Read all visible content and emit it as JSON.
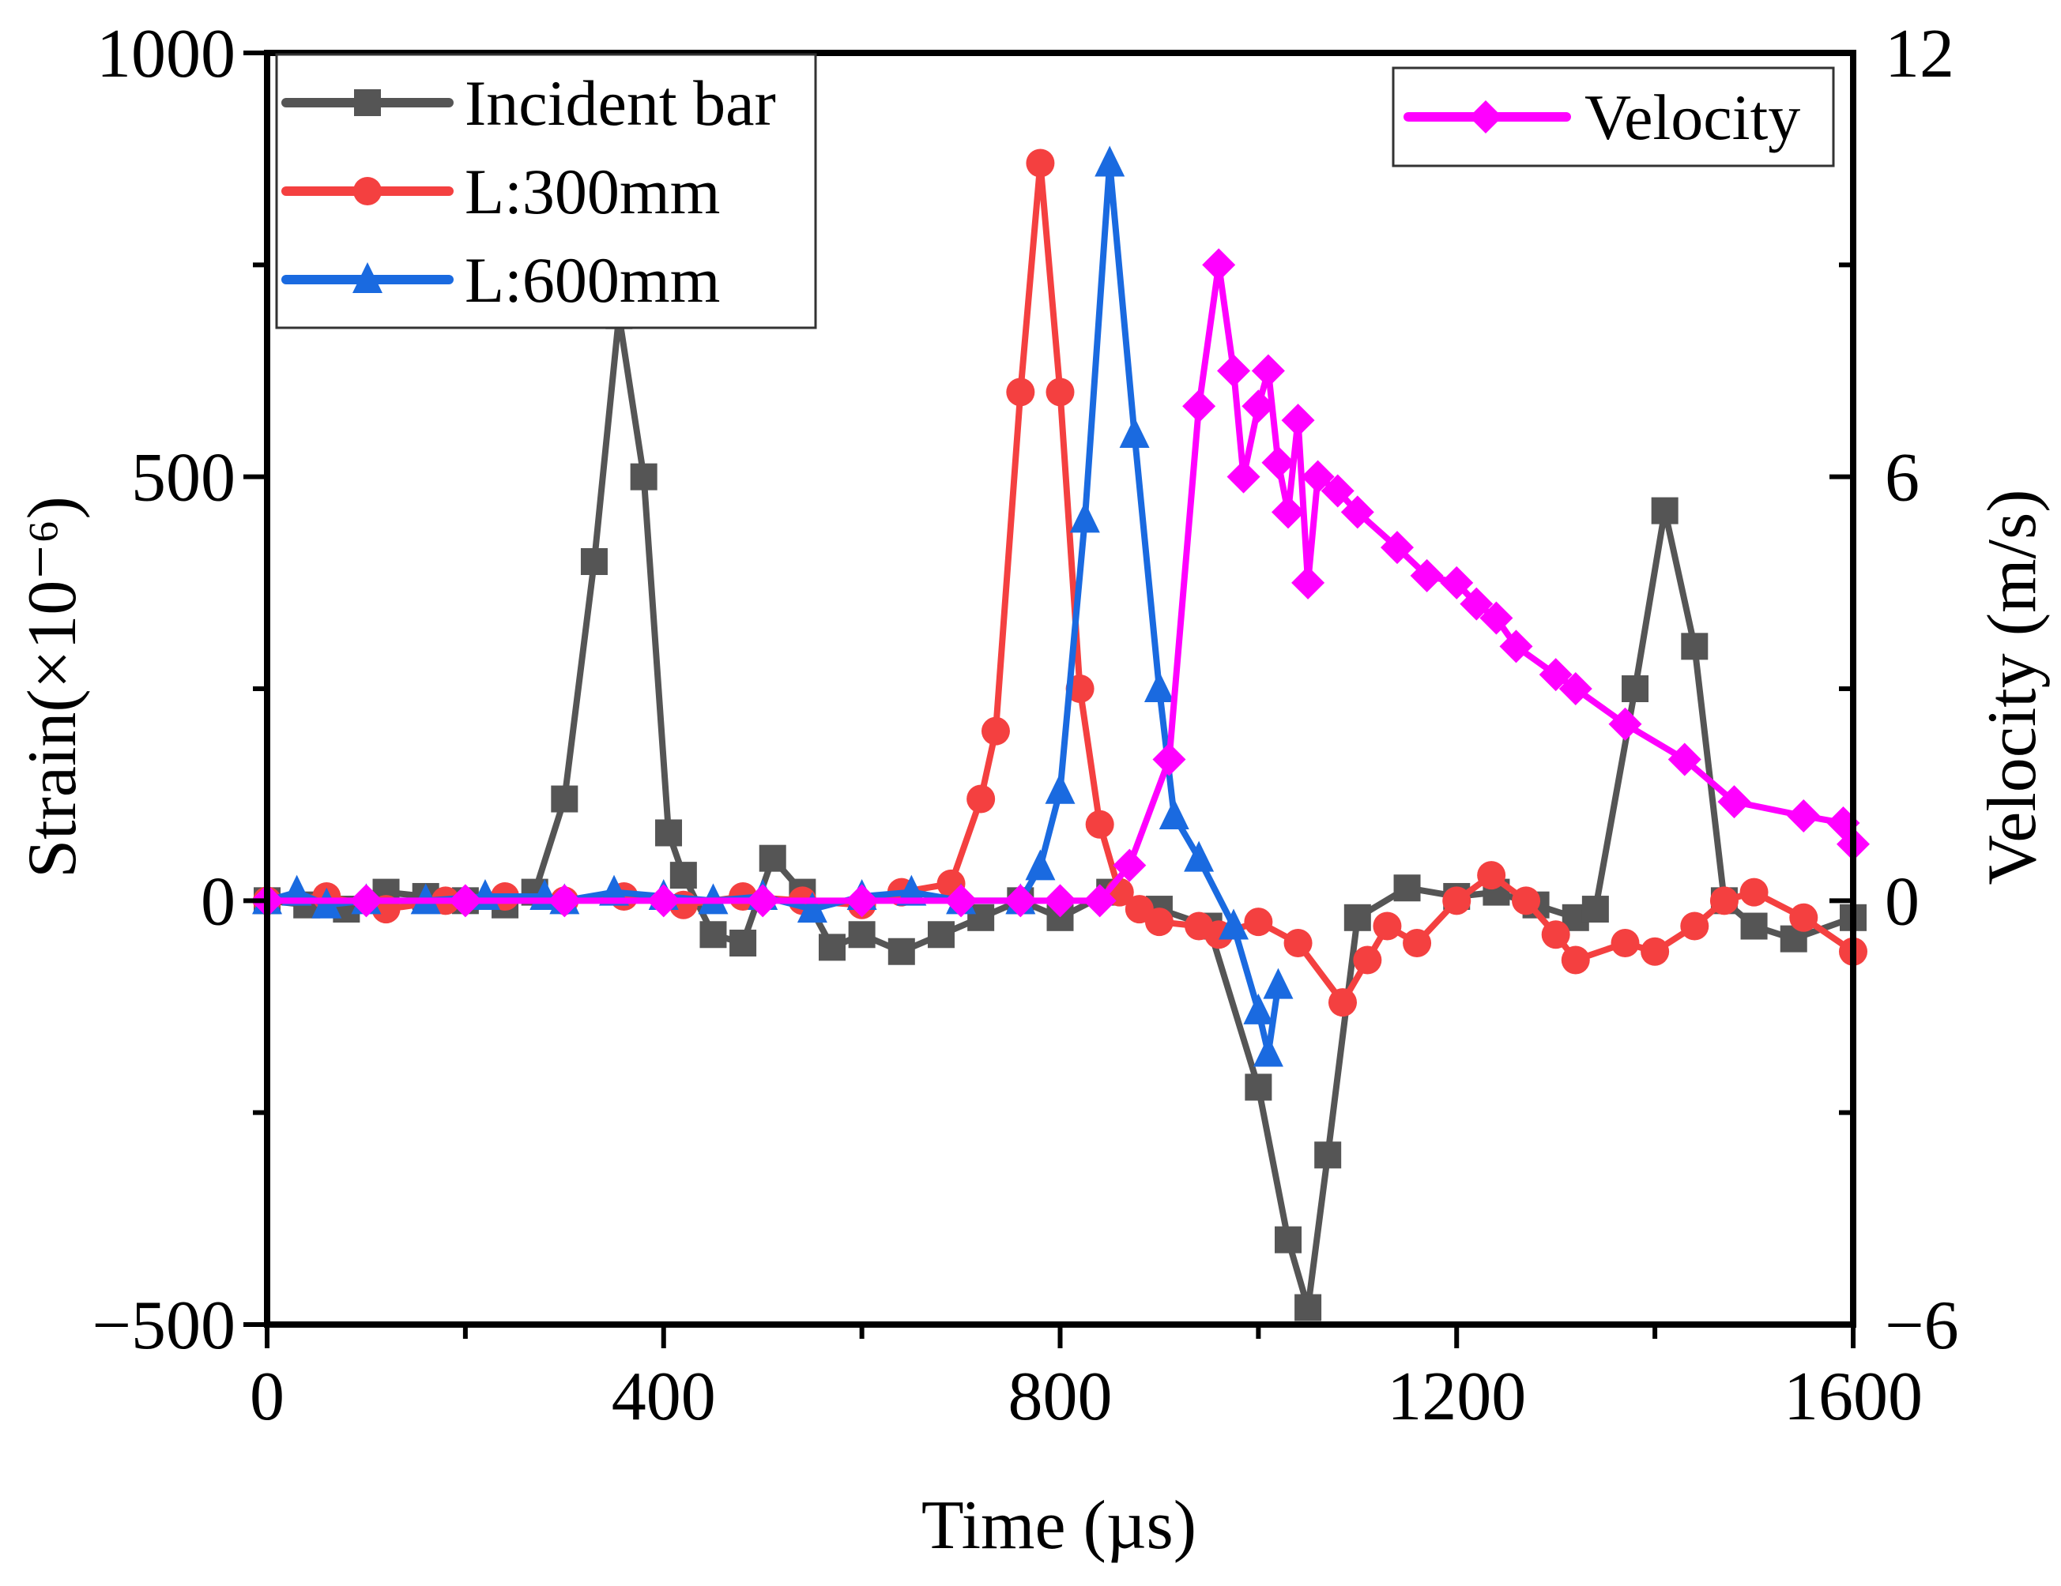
{
  "chart_data": {
    "type": "line",
    "xlabel": "Time (µs)",
    "ylabel": "Strain(×10⁻⁶)",
    "y2label": "Velocity (m/s)",
    "xlim": [
      0,
      1600
    ],
    "ylim": [
      -500,
      1000
    ],
    "y2lim": [
      -6,
      12
    ],
    "xticks": [
      "0",
      "400",
      "800",
      "1200",
      "1600"
    ],
    "yticks": [
      "1000",
      "500",
      "0",
      "−500"
    ],
    "y2ticks": [
      "12",
      "6",
      "0",
      "−6"
    ],
    "grid": false,
    "legend_left": "top-left",
    "legend_right": "top-right",
    "series": [
      {
        "name": "Incident bar",
        "axis": "left",
        "color": "#555555",
        "marker": "square",
        "x": [
          0,
          40,
          80,
          120,
          160,
          200,
          240,
          270,
          300,
          330,
          355,
          380,
          405,
          420,
          450,
          480,
          510,
          540,
          570,
          600,
          640,
          680,
          720,
          760,
          800,
          850,
          900,
          950,
          1000,
          1030,
          1050,
          1070,
          1100,
          1150,
          1200,
          1240,
          1280,
          1320,
          1340,
          1380,
          1410,
          1440,
          1470,
          1500,
          1540,
          1600
        ],
        "y": [
          0,
          -5,
          -10,
          10,
          5,
          0,
          -5,
          10,
          120,
          400,
          690,
          500,
          80,
          30,
          -40,
          -50,
          50,
          10,
          -55,
          -40,
          -60,
          -40,
          -20,
          0,
          -20,
          10,
          -10,
          -30,
          -220,
          -400,
          -480,
          -300,
          -20,
          15,
          5,
          10,
          -5,
          -20,
          -10,
          250,
          460,
          300,
          0,
          -30,
          -45,
          -20
        ]
      },
      {
        "name": "L:300mm",
        "axis": "left",
        "color": "#f44040",
        "marker": "circle",
        "x": [
          0,
          60,
          120,
          180,
          240,
          300,
          360,
          420,
          480,
          540,
          600,
          640,
          690,
          720,
          735,
          760,
          780,
          800,
          820,
          840,
          860,
          880,
          900,
          940,
          960,
          1000,
          1040,
          1085,
          1110,
          1130,
          1160,
          1200,
          1235,
          1270,
          1300,
          1320,
          1370,
          1400,
          1440,
          1470,
          1500,
          1550,
          1600
        ],
        "y": [
          0,
          5,
          -10,
          0,
          5,
          0,
          5,
          -5,
          5,
          0,
          -5,
          10,
          20,
          120,
          200,
          600,
          870,
          600,
          250,
          90,
          10,
          -10,
          -25,
          -30,
          -40,
          -25,
          -50,
          -120,
          -70,
          -30,
          -50,
          0,
          30,
          0,
          -40,
          -70,
          -50,
          -60,
          -30,
          0,
          10,
          -20,
          -60
        ]
      },
      {
        "name": "L:600mm",
        "axis": "left",
        "color": "#1a6ae0",
        "marker": "triangle",
        "x": [
          0,
          30,
          60,
          100,
          160,
          220,
          280,
          300,
          350,
          400,
          450,
          500,
          550,
          600,
          650,
          700,
          760,
          780,
          800,
          825,
          850,
          875,
          900,
          915,
          940,
          975,
          1000,
          1010,
          1020
        ],
        "y": [
          0,
          10,
          -5,
          0,
          0,
          5,
          5,
          0,
          10,
          5,
          0,
          5,
          -10,
          5,
          10,
          0,
          0,
          40,
          130,
          450,
          870,
          550,
          250,
          100,
          50,
          -30,
          -130,
          -180,
          -100
        ]
      },
      {
        "name": "Velocity",
        "axis": "right",
        "color": "#ff00ff",
        "marker": "diamond",
        "x": [
          0,
          100,
          200,
          300,
          400,
          500,
          600,
          700,
          760,
          800,
          840,
          870,
          910,
          940,
          960,
          975,
          985,
          1000,
          1010,
          1020,
          1030,
          1040,
          1050,
          1060,
          1080,
          1100,
          1140,
          1170,
          1200,
          1220,
          1240,
          1260,
          1300,
          1320,
          1370,
          1430,
          1480,
          1550,
          1590,
          1600
        ],
        "y": [
          0,
          0,
          0,
          0,
          0,
          0,
          0,
          0,
          0,
          0,
          0,
          0.5,
          2,
          7,
          9,
          7.5,
          6,
          7,
          7.5,
          6.2,
          5.5,
          6.8,
          4.5,
          6,
          5.8,
          5.5,
          5,
          4.6,
          4.5,
          4.2,
          4,
          3.6,
          3.2,
          3,
          2.5,
          2,
          1.4,
          1.2,
          1.1,
          0.8
        ]
      }
    ]
  }
}
